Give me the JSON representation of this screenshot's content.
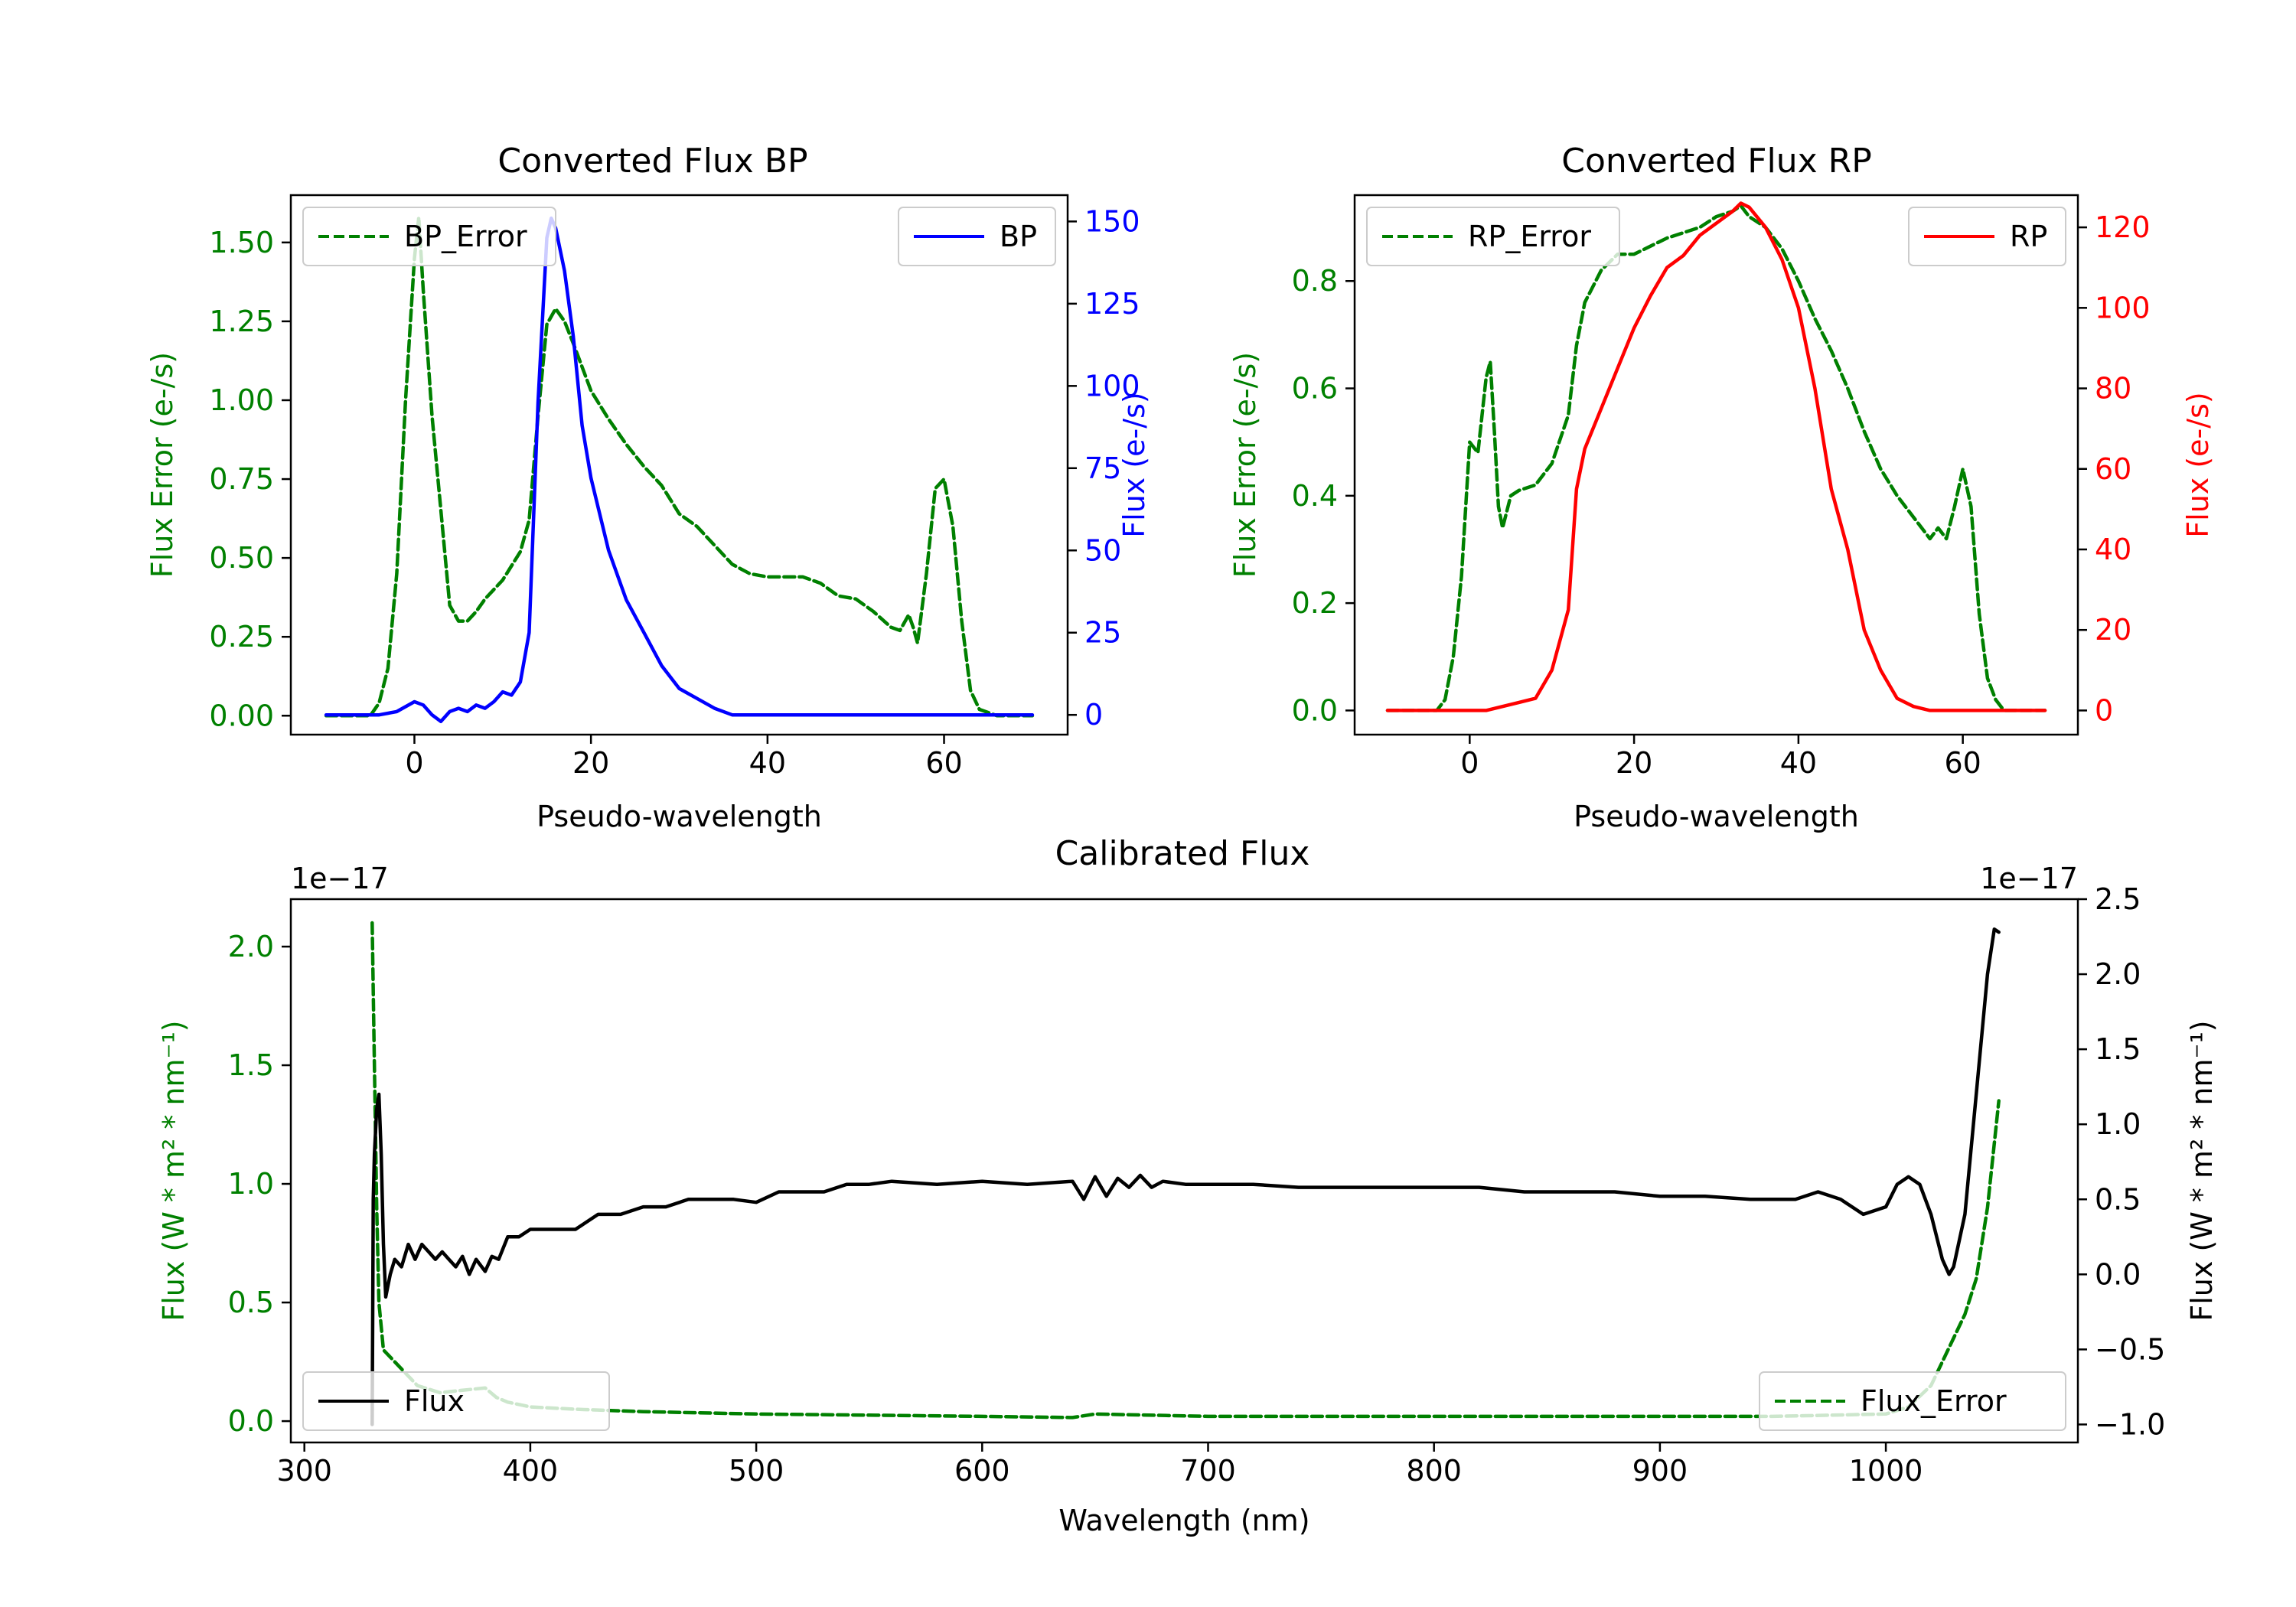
{
  "colors": {
    "bp": "#0000ff",
    "rp": "#ff0000",
    "error": "#008000",
    "calflux": "#000000",
    "axes": "#000000"
  },
  "chart_data": [
    {
      "id": "bp",
      "type": "line",
      "title": "Converted Flux BP",
      "xlabel": "Pseudo-wavelength",
      "xlim": [
        -14,
        74
      ],
      "xticks": [
        0,
        20,
        40,
        60
      ],
      "left_axis": {
        "label": "Flux Error (e-/s)",
        "color": "#008000",
        "lim": [
          -0.06,
          1.65
        ],
        "ticks": [
          "0.00",
          "0.25",
          "0.50",
          "0.75",
          "1.00",
          "1.25",
          "1.50"
        ]
      },
      "right_axis": {
        "label": "Flux (e-/s)",
        "color": "#0000ff",
        "lim": [
          -6,
          158
        ],
        "ticks": [
          "0",
          "25",
          "50",
          "75",
          "100",
          "125",
          "150"
        ]
      },
      "legend_left": "BP_Error",
      "legend_right": "BP",
      "series": [
        {
          "name": "BP_Error",
          "axis": "left",
          "style": "dashed",
          "color": "#008000",
          "x": [
            -10,
            -5,
            -4,
            -3,
            -2,
            -1,
            0,
            0.5,
            1,
            2,
            3,
            4,
            5,
            6,
            7,
            8,
            10,
            12,
            13,
            14,
            15,
            16,
            17,
            18,
            20,
            22,
            24,
            26,
            28,
            30,
            32,
            34,
            36,
            38,
            40,
            44,
            46,
            48,
            50,
            52,
            54,
            55,
            56,
            56.5,
            57,
            58,
            59,
            60,
            61,
            62,
            63,
            64,
            66,
            68,
            70
          ],
          "y": [
            0.0,
            0.0,
            0.04,
            0.15,
            0.45,
            1.0,
            1.45,
            1.58,
            1.35,
            0.95,
            0.65,
            0.35,
            0.3,
            0.3,
            0.33,
            0.37,
            0.43,
            0.52,
            0.62,
            0.95,
            1.24,
            1.29,
            1.25,
            1.18,
            1.03,
            0.94,
            0.86,
            0.79,
            0.73,
            0.64,
            0.6,
            0.54,
            0.48,
            0.45,
            0.44,
            0.44,
            0.42,
            0.38,
            0.37,
            0.33,
            0.28,
            0.27,
            0.32,
            0.28,
            0.23,
            0.45,
            0.72,
            0.75,
            0.6,
            0.3,
            0.08,
            0.02,
            0.0,
            0.0,
            0.0
          ]
        },
        {
          "name": "BP",
          "axis": "right",
          "style": "solid",
          "color": "#0000ff",
          "x": [
            -10,
            -4,
            -2,
            0,
            1,
            2,
            3,
            4,
            5,
            6,
            7,
            8,
            9,
            10,
            11,
            12,
            13,
            14,
            15,
            15.5,
            16,
            17,
            18,
            19,
            20,
            22,
            24,
            26,
            28,
            30,
            32,
            34,
            36,
            38,
            40,
            44,
            48,
            50,
            52,
            54,
            56,
            58,
            60,
            62,
            64,
            66,
            70
          ],
          "y": [
            0,
            0,
            1,
            4,
            3,
            0,
            -2,
            1,
            2,
            1,
            3,
            2,
            4,
            7,
            6,
            10,
            25,
            95,
            145,
            151,
            148,
            135,
            115,
            88,
            72,
            50,
            35,
            25,
            15,
            8,
            5,
            2,
            0,
            0,
            0,
            0,
            0,
            0,
            0,
            0,
            0,
            0,
            0,
            0,
            0,
            0,
            0
          ]
        }
      ]
    },
    {
      "id": "rp",
      "type": "line",
      "title": "Converted Flux RP",
      "xlabel": "Pseudo-wavelength",
      "xlim": [
        -14,
        74
      ],
      "xticks": [
        0,
        20,
        40,
        60
      ],
      "left_axis": {
        "label": "Flux Error (e-/s)",
        "color": "#008000",
        "lim": [
          -0.045,
          0.96
        ],
        "ticks": [
          "0.0",
          "0.2",
          "0.4",
          "0.6",
          "0.8"
        ]
      },
      "right_axis": {
        "label": "Flux (e-/s)",
        "color": "#ff0000",
        "lim": [
          -6,
          128
        ],
        "ticks": [
          "0",
          "20",
          "40",
          "60",
          "80",
          "100",
          "120"
        ]
      },
      "legend_left": "RP_Error",
      "legend_right": "RP",
      "series": [
        {
          "name": "RP_Error",
          "axis": "left",
          "style": "dashed",
          "color": "#008000",
          "x": [
            -10,
            -4,
            -3,
            -2,
            -1,
            0,
            1,
            2,
            2.5,
            3,
            3.5,
            4,
            5,
            6,
            8,
            10,
            12,
            13,
            14,
            16,
            18,
            20,
            24,
            28,
            30,
            32,
            33,
            34,
            36,
            38,
            40,
            42,
            44,
            46,
            48,
            50,
            52,
            54,
            56,
            57,
            58,
            59,
            60,
            61,
            62,
            63,
            64,
            65,
            66,
            70
          ],
          "y": [
            0.0,
            0.0,
            0.02,
            0.1,
            0.25,
            0.5,
            0.48,
            0.62,
            0.65,
            0.52,
            0.38,
            0.34,
            0.4,
            0.41,
            0.42,
            0.46,
            0.55,
            0.68,
            0.76,
            0.82,
            0.85,
            0.85,
            0.88,
            0.9,
            0.92,
            0.93,
            0.94,
            0.92,
            0.9,
            0.86,
            0.8,
            0.73,
            0.67,
            0.6,
            0.52,
            0.45,
            0.4,
            0.36,
            0.32,
            0.34,
            0.32,
            0.38,
            0.45,
            0.38,
            0.18,
            0.06,
            0.02,
            0.0,
            0.0,
            0.0
          ]
        },
        {
          "name": "RP",
          "axis": "right",
          "style": "solid",
          "color": "#ff0000",
          "x": [
            -10,
            -2,
            0,
            2,
            4,
            6,
            8,
            10,
            12,
            13,
            14,
            16,
            18,
            20,
            22,
            24,
            26,
            28,
            30,
            32,
            33,
            34,
            36,
            38,
            40,
            42,
            44,
            46,
            48,
            50,
            52,
            54,
            56,
            58,
            60,
            62,
            64,
            66,
            70
          ],
          "y": [
            0,
            0,
            0,
            0,
            1,
            2,
            3,
            10,
            25,
            55,
            65,
            75,
            85,
            95,
            103,
            110,
            113,
            118,
            121,
            124,
            126,
            125,
            120,
            112,
            100,
            80,
            55,
            40,
            20,
            10,
            3,
            1,
            0,
            0,
            0,
            0,
            0,
            0,
            0
          ]
        }
      ]
    },
    {
      "id": "cal",
      "type": "line",
      "title": "Calibrated Flux",
      "xlabel": "Wavelength (nm)",
      "xlim": [
        294,
        1085
      ],
      "xticks": [
        300,
        400,
        500,
        600,
        700,
        800,
        900,
        1000
      ],
      "left_axis": {
        "label": "Flux (W * m² * nm⁻¹)",
        "color": "#008000",
        "lim": [
          -0.09,
          2.2
        ],
        "ticks": [
          "0.0",
          "0.5",
          "1.0",
          "1.5",
          "2.0"
        ],
        "offset_text": "1e−17"
      },
      "right_axis": {
        "label": "Flux (W * m² * nm⁻¹)",
        "color": "#000000",
        "lim": [
          -1.12,
          2.5
        ],
        "ticks": [
          "−1.0",
          "−0.5",
          "0.0",
          "0.5",
          "1.0",
          "1.5",
          "2.0",
          "2.5"
        ],
        "offset_text": "1e−17"
      },
      "legend_left": "Flux",
      "legend_right": "Flux_Error",
      "series": [
        {
          "name": "Flux_Error",
          "axis": "left",
          "style": "dashed",
          "color": "#008000",
          "x": [
            330,
            331,
            332,
            333,
            335,
            340,
            345,
            350,
            360,
            370,
            380,
            385,
            390,
            400,
            420,
            450,
            500,
            550,
            600,
            640,
            650,
            700,
            750,
            800,
            850,
            900,
            950,
            1000,
            1010,
            1020,
            1025,
            1030,
            1035,
            1040,
            1045,
            1050
          ],
          "y": [
            2.1,
            1.5,
            0.9,
            0.5,
            0.3,
            0.25,
            0.2,
            0.15,
            0.12,
            0.13,
            0.14,
            0.1,
            0.08,
            0.06,
            0.05,
            0.04,
            0.03,
            0.025,
            0.02,
            0.015,
            0.03,
            0.02,
            0.02,
            0.02,
            0.02,
            0.02,
            0.02,
            0.03,
            0.06,
            0.15,
            0.25,
            0.35,
            0.45,
            0.6,
            0.9,
            1.35
          ]
        },
        {
          "name": "Flux",
          "axis": "right",
          "style": "solid",
          "color": "#000000",
          "x": [
            330,
            330.5,
            331,
            332,
            333,
            334,
            335,
            336,
            338,
            340,
            343,
            346,
            349,
            352,
            355,
            358,
            361,
            364,
            367,
            370,
            373,
            376,
            380,
            383,
            386,
            390,
            395,
            400,
            410,
            420,
            430,
            440,
            450,
            460,
            470,
            480,
            490,
            500,
            510,
            520,
            530,
            540,
            550,
            560,
            580,
            600,
            620,
            640,
            645,
            650,
            655,
            660,
            665,
            670,
            675,
            680,
            690,
            700,
            720,
            740,
            760,
            780,
            800,
            820,
            840,
            860,
            880,
            900,
            920,
            940,
            960,
            970,
            980,
            990,
            1000,
            1005,
            1010,
            1015,
            1020,
            1025,
            1028,
            1030,
            1035,
            1040,
            1045,
            1048,
            1050
          ],
          "y": [
            -1.0,
            0.5,
            0.8,
            1.1,
            1.2,
            0.8,
            0.2,
            -0.15,
            0.0,
            0.1,
            0.05,
            0.2,
            0.1,
            0.2,
            0.15,
            0.1,
            0.15,
            0.1,
            0.05,
            0.12,
            0.0,
            0.1,
            0.02,
            0.12,
            0.1,
            0.25,
            0.25,
            0.3,
            0.3,
            0.3,
            0.4,
            0.4,
            0.45,
            0.45,
            0.5,
            0.5,
            0.5,
            0.48,
            0.55,
            0.55,
            0.55,
            0.6,
            0.6,
            0.62,
            0.6,
            0.62,
            0.6,
            0.62,
            0.5,
            0.65,
            0.52,
            0.64,
            0.58,
            0.66,
            0.58,
            0.62,
            0.6,
            0.6,
            0.6,
            0.58,
            0.58,
            0.58,
            0.58,
            0.58,
            0.55,
            0.55,
            0.55,
            0.52,
            0.52,
            0.5,
            0.5,
            0.55,
            0.5,
            0.4,
            0.45,
            0.6,
            0.65,
            0.6,
            0.4,
            0.1,
            0.0,
            0.05,
            0.4,
            1.2,
            2.0,
            2.3,
            2.28
          ]
        }
      ]
    }
  ]
}
